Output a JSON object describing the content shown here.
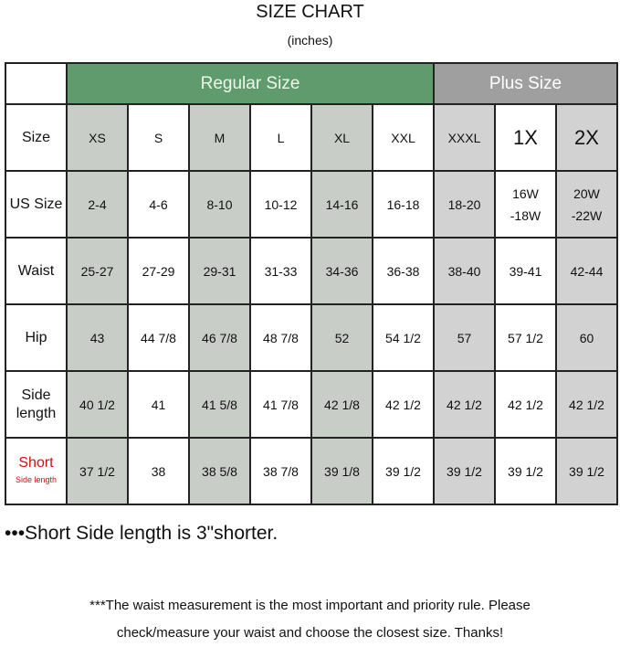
{
  "title": "SIZE CHART",
  "subtitle": "(inches)",
  "groups": {
    "regular": "Regular Size",
    "plus": "Plus Size"
  },
  "colors": {
    "regular_header": "#5f9b6c",
    "plus_header": "#9f9f9f",
    "shade_regular": "#c9cdc8",
    "shade_plus": "#d2d2d2",
    "short_label": "#d01010"
  },
  "rows": [
    {
      "label": "Size",
      "cells": [
        "XS",
        "S",
        "M",
        "L",
        "XL",
        "XXL",
        "XXXL",
        "1X",
        "2X"
      ]
    },
    {
      "label": "US Size",
      "cells": [
        "2-4",
        "4-6",
        "8-10",
        "10-12",
        "14-16",
        "16-18",
        "18-20",
        "16W -18W",
        "20W -22W"
      ]
    },
    {
      "label": "Waist",
      "cells": [
        "25-27",
        "27-29",
        "29-31",
        "31-33",
        "34-36",
        "36-38",
        "38-40",
        "39-41",
        "42-44"
      ]
    },
    {
      "label": "Hip",
      "cells": [
        "43",
        "44 7/8",
        "46 7/8",
        "48 7/8",
        "52",
        "54 1/2",
        "57",
        "57 1/2",
        "60"
      ]
    },
    {
      "label": "Side length",
      "cells": [
        "40 1/2",
        "41",
        "41 5/8",
        "41 7/8",
        "42 1/8",
        "42 1/2",
        "42 1/2",
        "42 1/2",
        "42 1/2"
      ]
    },
    {
      "label": "Short",
      "label_sub": "Side length",
      "cells": [
        "37 1/2",
        "38",
        "38 5/8",
        "38 7/8",
        "39 1/8",
        "39 1/2",
        "39 1/2",
        "39 1/2",
        "39 1/2"
      ]
    }
  ],
  "note_short": "•••Short Side length is  3\"shorter.",
  "note_waist_1": "***The waist measurement is the most important and priority rule. Please",
  "note_waist_2": "check/measure your waist and choose the closest size. Thanks!"
}
